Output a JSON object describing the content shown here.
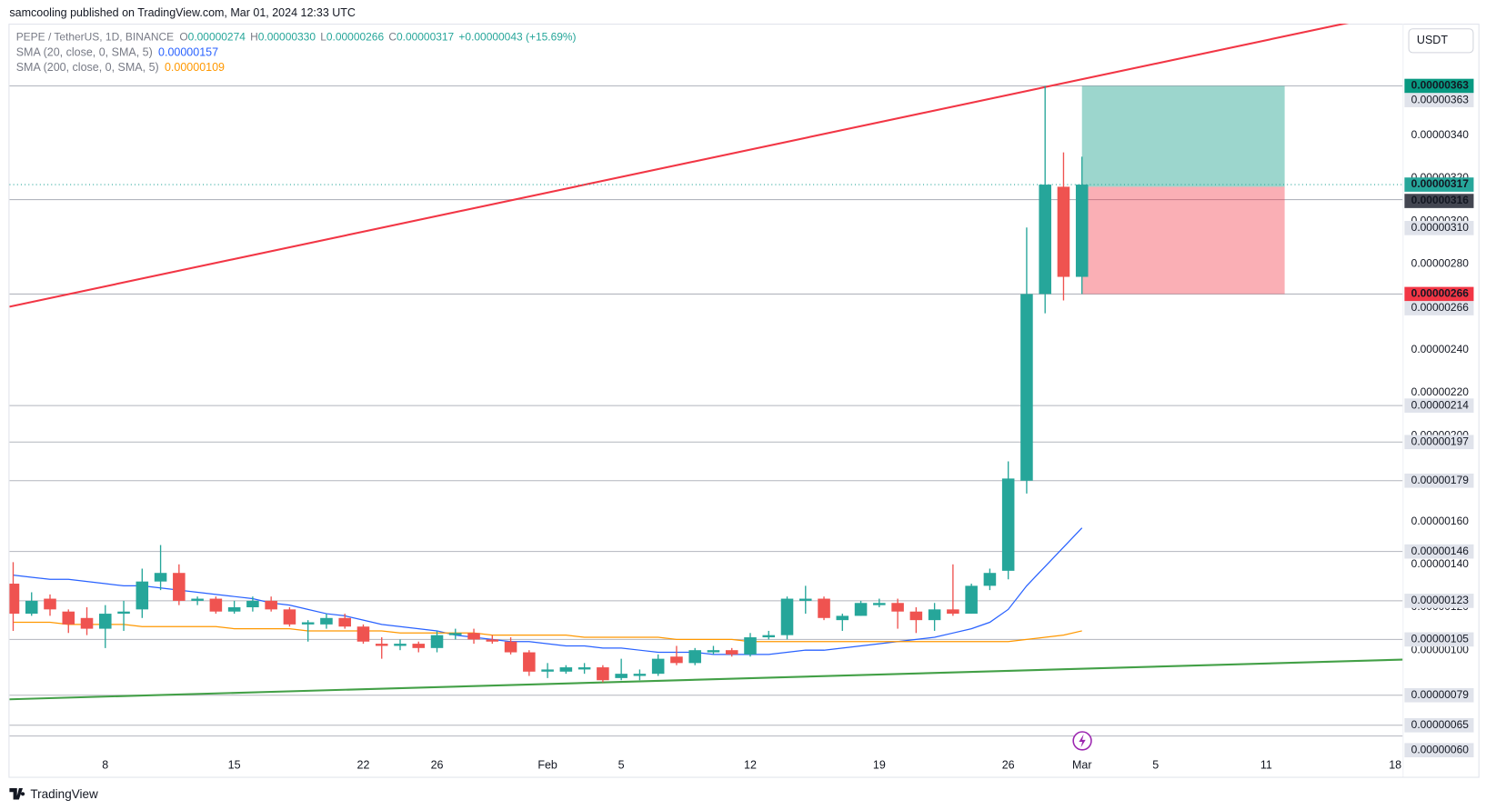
{
  "header": {
    "published": "samcooling published on TradingView.com, Mar 01, 2024 12:33 UTC",
    "currency": "USDT",
    "brand": "TradingView"
  },
  "chart_data": {
    "type": "candlestick",
    "symbol": "PEPE / TetherUS, 1D, BINANCE",
    "ohlc": [
      {
        "key": "O",
        "text": "0.00000274"
      },
      {
        "key": "H",
        "text": "0.00000330"
      },
      {
        "key": "L",
        "text": "0.00000266"
      },
      {
        "key": "C",
        "text": "0.00000317"
      }
    ],
    "change": "+0.00000043 (+15.69%)",
    "up_color": "#26a69a",
    "down_color": "#ef5350",
    "candles": [
      [
        1.31e-06,
        1.41e-06,
        1.09e-06,
        1.17e-06
      ],
      [
        1.17e-06,
        1.27e-06,
        1.16e-06,
        1.23e-06
      ],
      [
        1.24e-06,
        1.26e-06,
        1.16e-06,
        1.19e-06
      ],
      [
        1.18e-06,
        1.19e-06,
        1.08e-06,
        1.12e-06
      ],
      [
        1.15e-06,
        1.2e-06,
        1.07e-06,
        1.1e-06
      ],
      [
        1.1e-06,
        1.21e-06,
        1.01e-06,
        1.17e-06
      ],
      [
        1.17e-06,
        1.23e-06,
        1.09e-06,
        1.18e-06
      ],
      [
        1.19e-06,
        1.38e-06,
        1.15e-06,
        1.32e-06
      ],
      [
        1.32e-06,
        1.49e-06,
        1.28e-06,
        1.36e-06
      ],
      [
        1.36e-06,
        1.4e-06,
        1.21e-06,
        1.23e-06
      ],
      [
        1.23e-06,
        1.25e-06,
        1.21e-06,
        1.24e-06
      ],
      [
        1.24e-06,
        1.25e-06,
        1.17e-06,
        1.18e-06
      ],
      [
        1.18e-06,
        1.23e-06,
        1.17e-06,
        1.2e-06
      ],
      [
        1.2e-06,
        1.25e-06,
        1.18e-06,
        1.23e-06
      ],
      [
        1.23e-06,
        1.25e-06,
        1.18e-06,
        1.19e-06
      ],
      [
        1.19e-06,
        1.2e-06,
        1.11e-06,
        1.12e-06
      ],
      [
        1.12e-06,
        1.14e-06,
        1.04e-06,
        1.13e-06
      ],
      [
        1.12e-06,
        1.17e-06,
        1.1e-06,
        1.15e-06
      ],
      [
        1.15e-06,
        1.17e-06,
        1.1e-06,
        1.11e-06
      ],
      [
        1.11e-06,
        1.12e-06,
        1.03e-06,
        1.04e-06
      ],
      [
        1.03e-06,
        1.06e-06,
        9.6e-07,
        1.02e-06
      ],
      [
        1.02e-06,
        1.05e-06,
        1e-06,
        1.03e-06
      ],
      [
        1.03e-06,
        1.04e-06,
        9.9e-07,
        1.01e-06
      ],
      [
        1.01e-06,
        1.09e-06,
        9.9e-07,
        1.07e-06
      ],
      [
        1.07e-06,
        1.1e-06,
        1.05e-06,
        1.08e-06
      ],
      [
        1.08e-06,
        1.1e-06,
        1.03e-06,
        1.05e-06
      ],
      [
        1.05e-06,
        1.07e-06,
        1.03e-06,
        1.04e-06
      ],
      [
        1.04e-06,
        1.06e-06,
        9.8e-07,
        9.9e-07
      ],
      [
        9.9e-07,
        1e-06,
        8.8e-07,
        9e-07
      ],
      [
        9e-07,
        9.4e-07,
        8.7e-07,
        9.1e-07
      ],
      [
        9e-07,
        9.3e-07,
        8.9e-07,
        9.2e-07
      ],
      [
        9.1e-07,
        9.4e-07,
        8.9e-07,
        9.2e-07
      ],
      [
        9.2e-07,
        9.3e-07,
        8.5e-07,
        8.6e-07
      ],
      [
        8.7e-07,
        9.6e-07,
        8.6e-07,
        8.9e-07
      ],
      [
        8.8e-07,
        9.1e-07,
        8.6e-07,
        8.9e-07
      ],
      [
        8.9e-07,
        9.8e-07,
        8.8e-07,
        9.6e-07
      ],
      [
        9.7e-07,
        1.02e-06,
        9.3e-07,
        9.4e-07
      ],
      [
        9.4e-07,
        1.01e-06,
        9.3e-07,
        1e-06
      ],
      [
        9.9e-07,
        1.02e-06,
        9.8e-07,
        1e-06
      ],
      [
        1e-06,
        1.01e-06,
        9.7e-07,
        9.8e-07
      ],
      [
        9.8e-07,
        1.08e-06,
        9.7e-07,
        1.06e-06
      ],
      [
        1.06e-06,
        1.09e-06,
        1.05e-06,
        1.07e-06
      ],
      [
        1.07e-06,
        1.25e-06,
        1.05e-06,
        1.24e-06
      ],
      [
        1.23e-06,
        1.3e-06,
        1.17e-06,
        1.24e-06
      ],
      [
        1.24e-06,
        1.25e-06,
        1.14e-06,
        1.15e-06
      ],
      [
        1.14e-06,
        1.17e-06,
        1.09e-06,
        1.16e-06
      ],
      [
        1.16e-06,
        1.23e-06,
        1.16e-06,
        1.22e-06
      ],
      [
        1.21e-06,
        1.24e-06,
        1.2e-06,
        1.22e-06
      ],
      [
        1.22e-06,
        1.24e-06,
        1.1e-06,
        1.18e-06
      ],
      [
        1.18e-06,
        1.2e-06,
        1.08e-06,
        1.14e-06
      ],
      [
        1.14e-06,
        1.22e-06,
        1.09e-06,
        1.19e-06
      ],
      [
        1.19e-06,
        1.4e-06,
        1.16e-06,
        1.17e-06
      ],
      [
        1.17e-06,
        1.31e-06,
        1.17e-06,
        1.3e-06
      ],
      [
        1.3e-06,
        1.38e-06,
        1.28e-06,
        1.36e-06
      ],
      [
        1.37e-06,
        1.88e-06,
        1.33e-06,
        1.8e-06
      ],
      [
        1.79e-06,
        2.97e-06,
        1.73e-06,
        2.66e-06
      ],
      [
        2.66e-06,
        3.63e-06,
        2.57e-06,
        3.17e-06
      ],
      [
        3.16e-06,
        3.32e-06,
        2.63e-06,
        2.74e-06
      ],
      [
        2.74e-06,
        3.3e-06,
        2.66e-06,
        3.17e-06
      ]
    ],
    "series": [
      {
        "name": "SMA (20, close, 0, SMA, 5)",
        "color": "#2962ff",
        "values": [
          1.35e-06,
          1.34e-06,
          1.33e-06,
          1.33e-06,
          1.32e-06,
          1.31e-06,
          1.3e-06,
          1.3e-06,
          1.29e-06,
          1.28e-06,
          1.27e-06,
          1.26e-06,
          1.25e-06,
          1.24e-06,
          1.22e-06,
          1.21e-06,
          1.19e-06,
          1.17e-06,
          1.16e-06,
          1.14e-06,
          1.12e-06,
          1.11e-06,
          1.1e-06,
          1.09e-06,
          1.07e-06,
          1.06e-06,
          1.05e-06,
          1.04e-06,
          1.04e-06,
          1.03e-06,
          1.02e-06,
          1.02e-06,
          1.01e-06,
          1.01e-06,
          1e-06,
          9.9e-07,
          9.9e-07,
          9.9e-07,
          9.8e-07,
          9.8e-07,
          9.8e-07,
          9.8e-07,
          9.9e-07,
          1e-06,
          1e-06,
          1.01e-06,
          1.02e-06,
          1.03e-06,
          1.04e-06,
          1.05e-06,
          1.06e-06,
          1.08e-06,
          1.1e-06,
          1.13e-06,
          1.19e-06,
          1.3e-06,
          1.39e-06,
          1.48e-06,
          1.57e-06
        ]
      },
      {
        "name": "SMA (200, close, 0, SMA, 5)",
        "color": "#ff9800",
        "values": [
          1.13e-06,
          1.13e-06,
          1.13e-06,
          1.12e-06,
          1.12e-06,
          1.12e-06,
          1.12e-06,
          1.11e-06,
          1.11e-06,
          1.11e-06,
          1.11e-06,
          1.11e-06,
          1.1e-06,
          1.1e-06,
          1.1e-06,
          1.1e-06,
          1.09e-06,
          1.09e-06,
          1.09e-06,
          1.09e-06,
          1.09e-06,
          1.08e-06,
          1.08e-06,
          1.08e-06,
          1.08e-06,
          1.08e-06,
          1.07e-06,
          1.07e-06,
          1.07e-06,
          1.07e-06,
          1.07e-06,
          1.06e-06,
          1.06e-06,
          1.06e-06,
          1.06e-06,
          1.06e-06,
          1.05e-06,
          1.05e-06,
          1.05e-06,
          1.05e-06,
          1.04e-06,
          1.04e-06,
          1.04e-06,
          1.04e-06,
          1.04e-06,
          1.04e-06,
          1.04e-06,
          1.04e-06,
          1.04e-06,
          1.04e-06,
          1.04e-06,
          1.04e-06,
          1.04e-06,
          1.04e-06,
          1.04e-06,
          1.05e-06,
          1.06e-06,
          1.07e-06,
          1.09e-06
        ]
      }
    ],
    "trendlines": [
      {
        "color": "#f23645",
        "points": [
          [
            -0.2,
            2.601e-06
          ],
          [
            72.5,
            3.925e-06
          ]
        ]
      },
      {
        "color": "#43a047",
        "points": [
          [
            -0.2,
            7.71e-07
          ],
          [
            75.4,
            9.56e-07
          ]
        ]
      }
    ],
    "position": {
      "target": 3.63e-06,
      "entry": 3.16e-06,
      "stop": 2.66e-06,
      "start": 58,
      "end": 69,
      "profit_color": "#089981",
      "loss_color": "#f23645",
      "entry_color": "#434651"
    },
    "levels": [
      {
        "value": 3.63e-06,
        "label": "0.00000363"
      },
      {
        "value": 3.1e-06,
        "label": "0.00000310"
      },
      {
        "value": 2.66e-06,
        "label": "0.00000266"
      },
      {
        "value": 2.14e-06,
        "label": "0.00000214"
      },
      {
        "value": 1.97e-06,
        "label": "0.00000197"
      },
      {
        "value": 1.79e-06,
        "label": "0.00000179"
      },
      {
        "value": 1.46e-06,
        "label": "0.00000146"
      },
      {
        "value": 1.23e-06,
        "label": "0.00000123"
      },
      {
        "value": 1.05e-06,
        "label": "0.00000105"
      },
      {
        "value": 7.9e-07,
        "label": "0.00000079"
      },
      {
        "value": 6.5e-07,
        "label": "0.00000065"
      },
      {
        "value": 6e-07,
        "label": "0.00000060"
      }
    ],
    "xlim": [
      -0.2,
      75.4
    ],
    "ylim": [
      5.2e-07,
      3.92e-06
    ],
    "xticks": [
      {
        "value": 5,
        "label": "8"
      },
      {
        "value": 12,
        "label": "15"
      },
      {
        "value": 19,
        "label": "22"
      },
      {
        "value": 23,
        "label": "26"
      },
      {
        "value": 29,
        "label": "Feb"
      },
      {
        "value": 33,
        "label": "5"
      },
      {
        "value": 40,
        "label": "12"
      },
      {
        "value": 47,
        "label": "19"
      },
      {
        "value": 54,
        "label": "26"
      },
      {
        "value": 58,
        "label": "Mar"
      },
      {
        "value": 62,
        "label": "5"
      },
      {
        "value": 68,
        "label": "11"
      },
      {
        "value": 75,
        "label": "18"
      }
    ],
    "yticks": [
      {
        "value": 1e-06,
        "label": "0.00000100"
      },
      {
        "value": 1.2e-06,
        "label": "0.00000120"
      },
      {
        "value": 1.4e-06,
        "label": "0.00000140"
      },
      {
        "value": 1.6e-06,
        "label": "0.00000160"
      },
      {
        "value": 1.8e-06,
        "label": "0.00000180"
      },
      {
        "value": 2e-06,
        "label": "0.00000200"
      },
      {
        "value": 2.2e-06,
        "label": "0.00000220"
      },
      {
        "value": 2.4e-06,
        "label": "0.00000240"
      },
      {
        "value": 2.6e-06,
        "label": "0.00000260"
      },
      {
        "value": 2.8e-06,
        "label": "0.00000280"
      },
      {
        "value": 3e-06,
        "label": "0.00000300"
      },
      {
        "value": 3.2e-06,
        "label": "0.00000320"
      },
      {
        "value": 3.4e-06,
        "label": "0.00000340"
      }
    ],
    "grid": false
  }
}
